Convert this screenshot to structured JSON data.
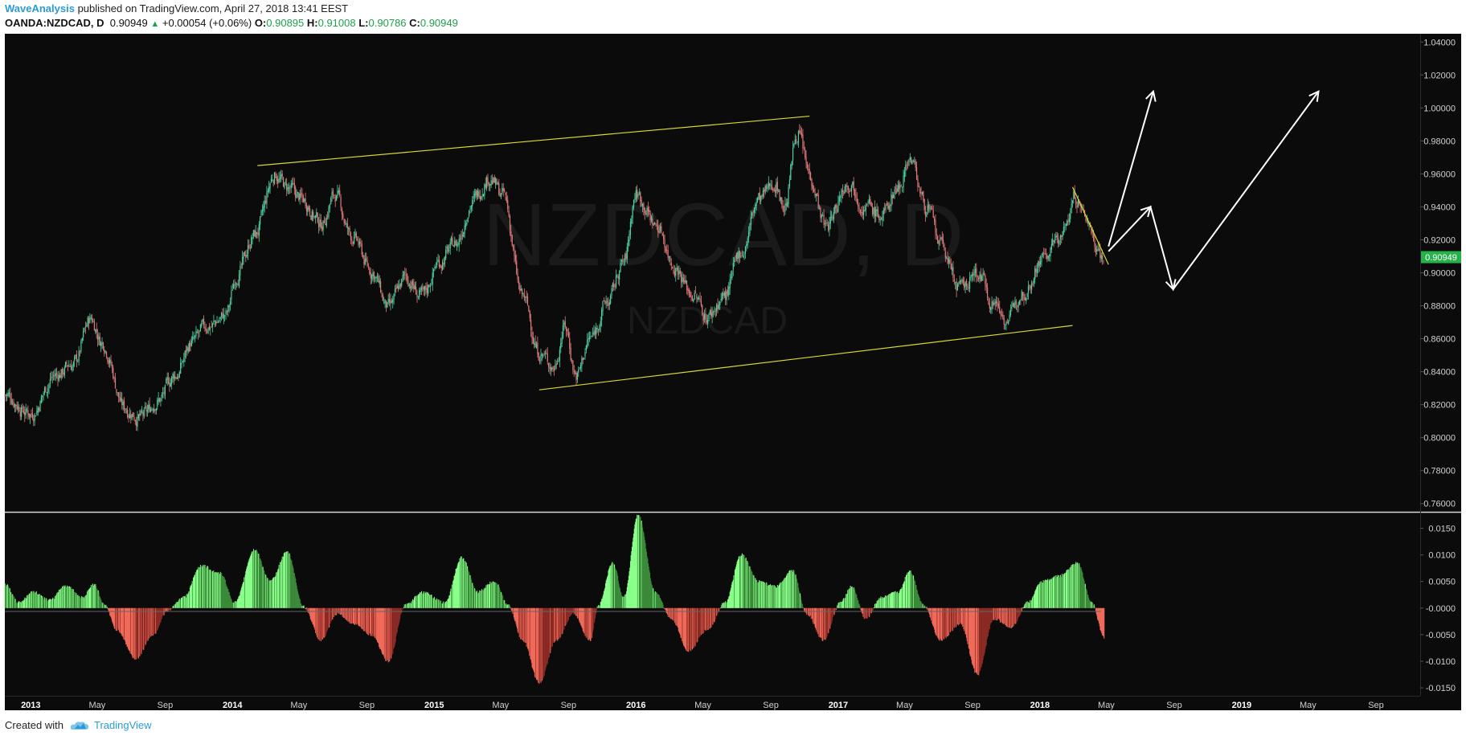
{
  "header": {
    "author": "WaveAnalysis",
    "published_text": "published on TradingView.com, April 27, 2018 13:41 EEST",
    "symbol": "OANDA:NZDCAD, D",
    "last_price": "0.90949",
    "change": "+0.00054 (+0.06%)",
    "open_label": "O:",
    "open_value": "0.90895",
    "high_label": "H:",
    "high_value": "0.91008",
    "low_label": "L:",
    "low_value": "0.90786",
    "close_label": "C:",
    "close_value": "0.90949"
  },
  "watermark": {
    "main": "NZDCAD, D",
    "sub": "NZDCAD"
  },
  "footer": {
    "created_with": "Created with",
    "brand": "TradingView"
  },
  "price_label": "0.90949",
  "colors": {
    "background": "#0b0b0b",
    "candle_up": "#4fd1a1",
    "candle_down": "#e07b7b",
    "trendline": "#d9d92e",
    "projection": "#ffffff",
    "osc_pos": "#8aff8a",
    "osc_pos_dark": "#3a8a3a",
    "osc_neg": "#f06a5a",
    "osc_neg_dark": "#8a2a24",
    "price_tag": "#27b14a"
  },
  "chart_data": [
    {
      "type": "candlestick",
      "title": "OANDA:NZDCAD, D",
      "x_range": [
        "2012-11-15",
        "2019-11-20"
      ],
      "ylim": [
        0.755,
        1.045
      ],
      "y_ticks": [
        "1.04000",
        "1.02000",
        "1.00000",
        "0.98000",
        "0.96000",
        "0.94000",
        "0.92000",
        "0.90000",
        "0.88000",
        "0.86000",
        "0.84000",
        "0.82000",
        "0.80000",
        "0.78000",
        "0.76000"
      ],
      "x_ticks": [
        {
          "label": "2013",
          "date": "2013-01-01",
          "bold": true
        },
        {
          "label": "May",
          "date": "2013-05-01",
          "bold": false
        },
        {
          "label": "Sep",
          "date": "2013-09-01",
          "bold": false
        },
        {
          "label": "2014",
          "date": "2014-01-01",
          "bold": true
        },
        {
          "label": "May",
          "date": "2014-05-01",
          "bold": false
        },
        {
          "label": "Sep",
          "date": "2014-09-01",
          "bold": false
        },
        {
          "label": "2015",
          "date": "2015-01-01",
          "bold": true
        },
        {
          "label": "May",
          "date": "2015-05-01",
          "bold": false
        },
        {
          "label": "Sep",
          "date": "2015-09-01",
          "bold": false
        },
        {
          "label": "2016",
          "date": "2016-01-01",
          "bold": true
        },
        {
          "label": "May",
          "date": "2016-05-01",
          "bold": false
        },
        {
          "label": "Sep",
          "date": "2016-09-01",
          "bold": false
        },
        {
          "label": "2017",
          "date": "2017-01-01",
          "bold": true
        },
        {
          "label": "May",
          "date": "2017-05-01",
          "bold": false
        },
        {
          "label": "Sep",
          "date": "2017-09-01",
          "bold": false
        },
        {
          "label": "2018",
          "date": "2018-01-01",
          "bold": true
        },
        {
          "label": "May",
          "date": "2018-05-01",
          "bold": false
        },
        {
          "label": "Sep",
          "date": "2018-09-01",
          "bold": false
        },
        {
          "label": "2019",
          "date": "2019-01-01",
          "bold": true
        },
        {
          "label": "May",
          "date": "2019-05-01",
          "bold": false
        },
        {
          "label": "Sep",
          "date": "2019-09-01",
          "bold": false
        }
      ],
      "price_path": [
        [
          "2012-11-15",
          0.826
        ],
        [
          "2013-01-01",
          0.815
        ],
        [
          "2013-02-15",
          0.838
        ],
        [
          "2013-03-20",
          0.845
        ],
        [
          "2013-04-20",
          0.872
        ],
        [
          "2013-05-10",
          0.858
        ],
        [
          "2013-06-20",
          0.818
        ],
        [
          "2013-07-20",
          0.812
        ],
        [
          "2013-08-20",
          0.823
        ],
        [
          "2013-09-20",
          0.838
        ],
        [
          "2013-10-20",
          0.858
        ],
        [
          "2013-11-20",
          0.868
        ],
        [
          "2013-12-20",
          0.874
        ],
        [
          "2014-01-10",
          0.9
        ],
        [
          "2014-02-10",
          0.923
        ],
        [
          "2014-03-20",
          0.96
        ],
        [
          "2014-04-10",
          0.951
        ],
        [
          "2014-05-10",
          0.944
        ],
        [
          "2014-06-10",
          0.93
        ],
        [
          "2014-07-05",
          0.947
        ],
        [
          "2014-08-05",
          0.922
        ],
        [
          "2014-09-10",
          0.901
        ],
        [
          "2014-10-10",
          0.878
        ],
        [
          "2014-11-10",
          0.897
        ],
        [
          "2014-12-10",
          0.885
        ],
        [
          "2015-01-10",
          0.907
        ],
        [
          "2015-02-10",
          0.918
        ],
        [
          "2015-03-10",
          0.943
        ],
        [
          "2015-04-10",
          0.958
        ],
        [
          "2015-05-05",
          0.947
        ],
        [
          "2015-06-10",
          0.885
        ],
        [
          "2015-07-10",
          0.852
        ],
        [
          "2015-08-05",
          0.843
        ],
        [
          "2015-08-25",
          0.868
        ],
        [
          "2015-09-15",
          0.838
        ],
        [
          "2015-10-10",
          0.86
        ],
        [
          "2015-11-10",
          0.882
        ],
        [
          "2015-12-10",
          0.906
        ],
        [
          "2016-01-01",
          0.948
        ],
        [
          "2016-02-10",
          0.928
        ],
        [
          "2016-03-10",
          0.905
        ],
        [
          "2016-04-10",
          0.888
        ],
        [
          "2016-05-10",
          0.874
        ],
        [
          "2016-06-10",
          0.886
        ],
        [
          "2016-07-10",
          0.913
        ],
        [
          "2016-08-10",
          0.944
        ],
        [
          "2016-09-10",
          0.955
        ],
        [
          "2016-09-25",
          0.94
        ],
        [
          "2016-10-20",
          0.986
        ],
        [
          "2016-11-10",
          0.96
        ],
        [
          "2016-12-10",
          0.928
        ],
        [
          "2017-01-20",
          0.956
        ],
        [
          "2017-02-20",
          0.941
        ],
        [
          "2017-03-20",
          0.934
        ],
        [
          "2017-04-20",
          0.953
        ],
        [
          "2017-05-10",
          0.97
        ],
        [
          "2017-06-10",
          0.94
        ],
        [
          "2017-07-05",
          0.916
        ],
        [
          "2017-08-10",
          0.89
        ],
        [
          "2017-09-10",
          0.9
        ],
        [
          "2017-10-10",
          0.882
        ],
        [
          "2017-11-05",
          0.872
        ],
        [
          "2017-12-01",
          0.89
        ],
        [
          "2018-01-10",
          0.91
        ],
        [
          "2018-02-10",
          0.922
        ],
        [
          "2018-03-05",
          0.946
        ],
        [
          "2018-03-25",
          0.933
        ],
        [
          "2018-04-15",
          0.917
        ],
        [
          "2018-04-27",
          0.9095
        ]
      ],
      "channel_upper": [
        [
          "2014-02-15",
          0.965
        ],
        [
          "2016-11-10",
          0.995
        ]
      ],
      "channel_lower": [
        [
          "2015-07-10",
          0.829
        ],
        [
          "2018-03-01",
          0.868
        ]
      ],
      "falling_line": [
        [
          "2018-03-01",
          0.952
        ],
        [
          "2018-05-05",
          0.905
        ]
      ],
      "projection_1": [
        [
          "2018-05-05",
          0.913
        ],
        [
          "2018-07-20",
          0.94
        ],
        [
          "2018-08-30",
          0.89
        ],
        [
          "2019-05-20",
          1.01
        ]
      ],
      "projection_2": [
        [
          "2018-05-05",
          0.916
        ],
        [
          "2018-07-25",
          1.01
        ]
      ]
    },
    {
      "type": "bar",
      "title": "",
      "ylim": [
        -0.0165,
        0.0178
      ],
      "y_ticks": [
        "0.0150",
        "0.0100",
        "0.0050",
        "-0.0000",
        "-0.0050",
        "-0.0100",
        "-0.0150"
      ],
      "profile": [
        [
          "2012-11-15",
          0.0045
        ],
        [
          "2012-12-10",
          0.001
        ],
        [
          "2013-01-05",
          0.003
        ],
        [
          "2013-02-05",
          0.0015
        ],
        [
          "2013-03-05",
          0.0042
        ],
        [
          "2013-04-05",
          0.002
        ],
        [
          "2013-04-25",
          0.0045
        ],
        [
          "2013-05-15",
          0.0005
        ],
        [
          "2013-06-05",
          -0.004
        ],
        [
          "2013-07-10",
          -0.0095
        ],
        [
          "2013-08-10",
          -0.005
        ],
        [
          "2013-09-05",
          -0.0005
        ],
        [
          "2013-10-05",
          0.002
        ],
        [
          "2013-11-05",
          0.008
        ],
        [
          "2013-12-10",
          0.0065
        ],
        [
          "2014-01-05",
          0.001
        ],
        [
          "2014-02-10",
          0.011
        ],
        [
          "2014-03-10",
          0.005
        ],
        [
          "2014-04-10",
          0.0105
        ],
        [
          "2014-05-10",
          0.0002
        ],
        [
          "2014-06-10",
          -0.006
        ],
        [
          "2014-07-10",
          -0.001
        ],
        [
          "2014-08-10",
          -0.003
        ],
        [
          "2014-09-10",
          -0.005
        ],
        [
          "2014-10-10",
          -0.01
        ],
        [
          "2014-11-10",
          0.0005
        ],
        [
          "2014-12-10",
          0.003
        ],
        [
          "2015-01-20",
          0.001
        ],
        [
          "2015-02-20",
          0.0095
        ],
        [
          "2015-03-20",
          0.003
        ],
        [
          "2015-04-20",
          0.005
        ],
        [
          "2015-05-15",
          0.0005
        ],
        [
          "2015-06-10",
          -0.006
        ],
        [
          "2015-07-10",
          -0.014
        ],
        [
          "2015-08-10",
          -0.006
        ],
        [
          "2015-09-10",
          -0.001
        ],
        [
          "2015-10-10",
          -0.006
        ],
        [
          "2015-10-25",
          0.0005
        ],
        [
          "2015-11-20",
          0.0085
        ],
        [
          "2015-12-10",
          0.002
        ],
        [
          "2016-01-05",
          0.0175
        ],
        [
          "2016-02-05",
          0.003
        ],
        [
          "2016-03-05",
          -0.002
        ],
        [
          "2016-04-05",
          -0.008
        ],
        [
          "2016-05-10",
          -0.004
        ],
        [
          "2016-06-10",
          0.001
        ],
        [
          "2016-07-10",
          0.01
        ],
        [
          "2016-08-10",
          0.005
        ],
        [
          "2016-09-10",
          0.004
        ],
        [
          "2016-10-10",
          0.007
        ],
        [
          "2016-11-05",
          -0.001
        ],
        [
          "2016-12-05",
          -0.006
        ],
        [
          "2017-01-05",
          0.001
        ],
        [
          "2017-01-25",
          0.004
        ],
        [
          "2017-02-20",
          -0.002
        ],
        [
          "2017-03-20",
          0.002
        ],
        [
          "2017-04-20",
          0.003
        ],
        [
          "2017-05-10",
          0.007
        ],
        [
          "2017-06-05",
          0.0005
        ],
        [
          "2017-07-05",
          -0.006
        ],
        [
          "2017-08-10",
          -0.003
        ],
        [
          "2017-09-10",
          -0.0125
        ],
        [
          "2017-10-10",
          -0.002
        ],
        [
          "2017-11-10",
          -0.0035
        ],
        [
          "2017-12-10",
          0.001
        ],
        [
          "2018-01-05",
          0.005
        ],
        [
          "2018-02-05",
          0.006
        ],
        [
          "2018-03-10",
          0.0085
        ],
        [
          "2018-04-05",
          0.001
        ],
        [
          "2018-04-27",
          -0.0055
        ]
      ]
    }
  ]
}
